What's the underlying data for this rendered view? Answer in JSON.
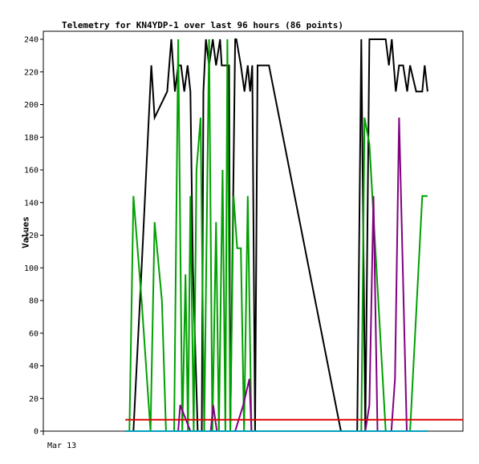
{
  "chart_data": {
    "type": "line",
    "title": "Telemetry for KN4YDP-1 over last 96 hours (86 points)",
    "ylabel": "Values",
    "xlabel": "",
    "x_tick_labels": [
      "Mar 13"
    ],
    "y_ticks": [
      0,
      20,
      40,
      60,
      80,
      100,
      120,
      140,
      160,
      180,
      200,
      220,
      240
    ],
    "ylim": [
      0,
      240
    ],
    "xlim": [
      0,
      100
    ],
    "grid": false,
    "colors": {
      "black": "#000000",
      "green": "#00a000",
      "purple": "#800080",
      "red": "#e00000",
      "cyan": "#00a0c0"
    },
    "series": [
      {
        "color": "black",
        "x": [
          17,
          19,
          21,
          23.4,
          24.2,
          27.3,
          28.3,
          29.2,
          30,
          30.7,
          31.5,
          32.3,
          33,
          33.6,
          34.8,
          35.8,
          36.2,
          36.8,
          37.6,
          38.5,
          39.3,
          40.3,
          40.7,
          41.4,
          42.5,
          42.8,
          44,
          44.3,
          45.4,
          46.3,
          47.1,
          47.7,
          48.2,
          48.9,
          49.5,
          52.3,
          70,
          74,
          75,
          76,
          77,
          81,
          81.8,
          82.5,
          83.5,
          84.3,
          85.3,
          86.3,
          87,
          88.5,
          90,
          90.6,
          91.3
        ],
        "y": [
          0,
          0,
          100,
          224,
          192,
          208,
          240,
          208,
          224,
          224,
          208,
          224,
          208,
          100,
          0,
          0,
          208,
          240,
          224,
          240,
          224,
          240,
          224,
          224,
          224,
          0,
          240,
          240,
          224,
          208,
          224,
          208,
          224,
          0,
          224,
          224,
          0,
          0,
          240,
          0,
          240,
          240,
          224,
          240,
          208,
          224,
          224,
          208,
          224,
          208,
          208,
          224,
          208
        ]
      },
      {
        "color": "green",
        "x": [
          18,
          19,
          21,
          23.2,
          24.2,
          26,
          27,
          28,
          29,
          30,
          31,
          31.8,
          32.4,
          33,
          33.8,
          34.5,
          35.5,
          36.4,
          37.6,
          38.4,
          39.3,
          40,
          40.9,
          41.6,
          42.1,
          42.8,
          43.6,
          44.5,
          45.4,
          46.2,
          47.1,
          48,
          52.3,
          72,
          75,
          75.8,
          77,
          81,
          83.5,
          87,
          90,
          91.3
        ],
        "y": [
          0,
          144,
          80,
          0,
          128,
          80,
          0,
          0,
          0,
          240,
          0,
          96,
          0,
          144,
          0,
          160,
          192,
          0,
          240,
          0,
          128,
          0,
          160,
          0,
          240,
          0,
          144,
          112,
          112,
          0,
          144,
          0,
          0,
          0,
          0,
          192,
          176,
          0,
          0,
          0,
          144,
          144
        ]
      },
      {
        "color": "purple",
        "x": [
          28,
          30,
          30.5,
          33,
          35,
          38,
          38.6,
          39.5,
          41,
          44,
          46,
          47.5,
          48,
          76,
          77,
          78,
          79,
          80,
          82.4,
          83.3,
          84.3,
          86.2,
          87,
          89,
          91.3
        ],
        "y": [
          0,
          0,
          16,
          0,
          0,
          0,
          16,
          0,
          0,
          0,
          16,
          32,
          0,
          0,
          16,
          144,
          0,
          0,
          0,
          32,
          192,
          0,
          0,
          0,
          0
        ]
      },
      {
        "color": "red",
        "x": [
          17,
          100
        ],
        "y": [
          7,
          7
        ]
      },
      {
        "color": "cyan",
        "x": [
          17,
          91.3
        ],
        "y": [
          0,
          0
        ]
      }
    ]
  }
}
